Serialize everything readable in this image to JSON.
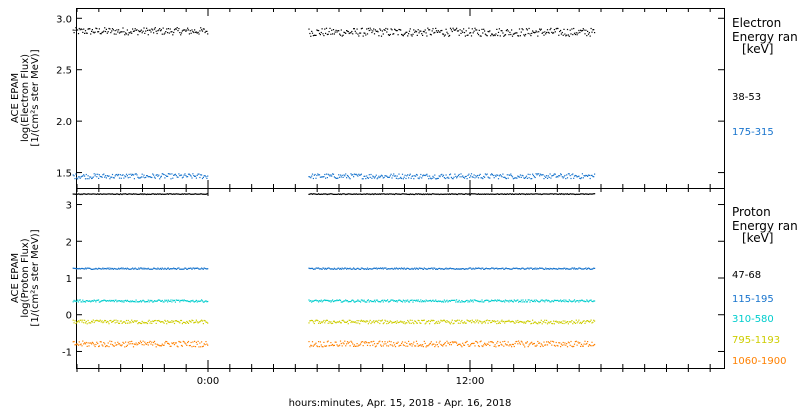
{
  "chart_data": {
    "type": "scatter",
    "time_range": [
      "Apr. 15, 2018",
      "Apr. 16, 2018"
    ],
    "xlabel": "hours:minutes, Apr. 15, 2018 - Apr. 16, 2018",
    "x_ticks": [
      "0:00",
      "12:00"
    ],
    "data_gap_hours": [
      0.0,
      4.6
    ],
    "panels": [
      {
        "name": "electron",
        "ylabel": [
          "ACE EPAM",
          "log(Electron Flux)",
          "[1/(cm²s ster MeV)]"
        ],
        "ylim": [
          1.35,
          3.1
        ],
        "y_ticks": [
          1.5,
          2.0,
          2.5,
          3.0
        ],
        "y_tick_labels": [
          "1.5",
          "2.0",
          "2.5",
          "3.0"
        ],
        "legend_title": [
          "Electron",
          "Energy ran",
          "[keV]"
        ],
        "series": [
          {
            "name": "38-53",
            "color": "#000000",
            "segments": [
              [
                -6.2,
                0.0,
                2.88,
                0.035
              ],
              [
                4.6,
                17.7,
                2.87,
                0.04
              ]
            ]
          },
          {
            "name": "175-315",
            "color": "#1874cd",
            "segments": [
              [
                -6.2,
                0.0,
                1.47,
                0.025
              ],
              [
                4.6,
                17.7,
                1.47,
                0.025
              ]
            ]
          }
        ]
      },
      {
        "name": "proton",
        "ylabel": [
          "ACE EPAM",
          "log(Proton Flux)",
          "[1/(cm²s ster MeV)]"
        ],
        "ylim": [
          -1.45,
          3.45
        ],
        "y_ticks": [
          -1,
          0,
          1,
          2,
          3
        ],
        "y_tick_labels": [
          "-1",
          "0",
          "1",
          "2",
          "3"
        ],
        "legend_title": [
          "Proton",
          "Energy ran",
          "[keV]"
        ],
        "series": [
          {
            "name": "47-68",
            "color": "#000000",
            "segments": [
              [
                -6.2,
                0.0,
                3.3,
                0.01
              ],
              [
                4.6,
                17.7,
                3.3,
                0.01
              ]
            ]
          },
          {
            "name": "115-195",
            "color": "#1874cd",
            "segments": [
              [
                -6.2,
                0.0,
                1.27,
                0.02
              ],
              [
                4.6,
                17.7,
                1.27,
                0.02
              ]
            ]
          },
          {
            "name": "310-580",
            "color": "#00cdcd",
            "segments": [
              [
                -6.2,
                0.0,
                0.39,
                0.03
              ],
              [
                4.6,
                17.7,
                0.39,
                0.03
              ]
            ]
          },
          {
            "name": "795-1193",
            "color": "#cdcd00",
            "segments": [
              [
                -6.2,
                0.0,
                -0.18,
                0.05
              ],
              [
                4.6,
                17.7,
                -0.18,
                0.05
              ]
            ]
          },
          {
            "name": "1060-1900",
            "color": "#ff8000",
            "segments": [
              [
                -6.2,
                0.0,
                -0.78,
                0.08
              ],
              [
                4.6,
                17.7,
                -0.78,
                0.08
              ]
            ]
          }
        ]
      }
    ]
  }
}
